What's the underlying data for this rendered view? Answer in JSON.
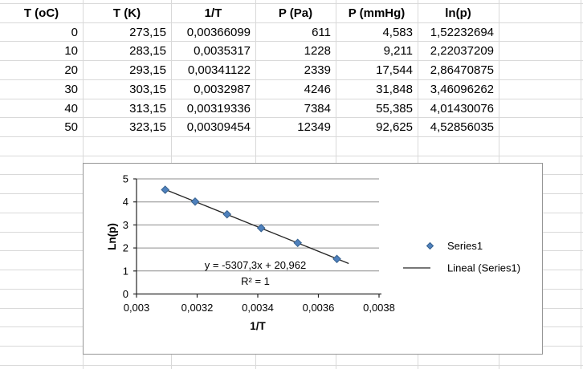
{
  "table": {
    "headers": [
      "T (oC)",
      "T (K)",
      "1/T",
      "P (Pa)",
      "P (mmHg)",
      "ln(p)"
    ],
    "rows": [
      [
        "0",
        "273,15",
        "0,00366099",
        "611",
        "4,583",
        "1,52232694"
      ],
      [
        "10",
        "283,15",
        "0,0035317",
        "1228",
        "9,211",
        "2,22037209"
      ],
      [
        "20",
        "293,15",
        "0,00341122",
        "2339",
        "17,544",
        "2,86470875"
      ],
      [
        "30",
        "303,15",
        "0,0032987",
        "4246",
        "31,848",
        "3,46096262"
      ],
      [
        "40",
        "313,15",
        "0,00319336",
        "7384",
        "55,385",
        "4,01430076"
      ],
      [
        "50",
        "323,15",
        "0,00309454",
        "12349",
        "92,625",
        "4,52856035"
      ]
    ]
  },
  "chart_data": {
    "type": "scatter",
    "title": "",
    "xlabel": "1/T",
    "ylabel": "Ln(p)",
    "xlim": [
      0.003,
      0.0038
    ],
    "ylim": [
      0,
      5
    ],
    "grid": true,
    "legend_position": "right-center",
    "x_ticks": [
      {
        "value": 0.003,
        "label": "0,003"
      },
      {
        "value": 0.0032,
        "label": "0,0032"
      },
      {
        "value": 0.0034,
        "label": "0,0034"
      },
      {
        "value": 0.0036,
        "label": "0,0036"
      },
      {
        "value": 0.0038,
        "label": "0,0038"
      }
    ],
    "y_ticks": [
      {
        "value": 0,
        "label": "0"
      },
      {
        "value": 1,
        "label": "1"
      },
      {
        "value": 2,
        "label": "2"
      },
      {
        "value": 3,
        "label": "3"
      },
      {
        "value": 4,
        "label": "4"
      },
      {
        "value": 5,
        "label": "5"
      }
    ],
    "series": [
      {
        "name": "Series1",
        "kind": "scatter",
        "marker": "diamond",
        "color": "#4f81bd",
        "border_color": "#36618f",
        "points": [
          {
            "x": 0.00366099,
            "y": 1.52232694
          },
          {
            "x": 0.0035317,
            "y": 2.22037209
          },
          {
            "x": 0.00341122,
            "y": 2.86470875
          },
          {
            "x": 0.0032987,
            "y": 3.46096262
          },
          {
            "x": 0.00319336,
            "y": 4.01430076
          },
          {
            "x": 0.00309454,
            "y": 4.52856035
          }
        ]
      },
      {
        "name": "Lineal (Series1)",
        "kind": "trendline",
        "color": "#262626",
        "slope": -5307.3,
        "intercept": 20.962,
        "x_start": 0.00309454,
        "x_end": 0.0037
      }
    ],
    "annotations": [
      {
        "text": "y = -5307,3x + 20,962"
      },
      {
        "text": "R² = 1"
      }
    ]
  },
  "colors": {
    "series_marker": "#4f81bd",
    "series_marker_border": "#36618f",
    "trendline": "#262626",
    "plot_gridline": "#8c8c8c",
    "axis": "#262626",
    "sheet_gridline": "#d9d9d9",
    "chart_border": "#969696"
  }
}
